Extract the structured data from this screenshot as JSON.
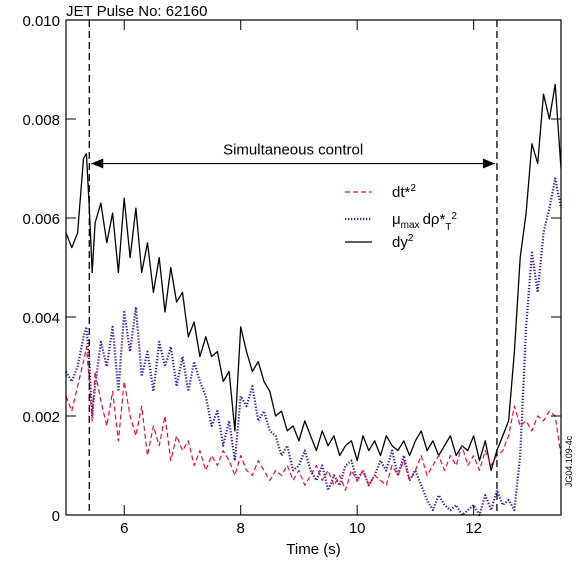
{
  "chart_data": {
    "type": "line",
    "title": "JET Pulse No: 62160",
    "xlabel": "Time (s)",
    "ylabel": "",
    "xlim": [
      5.0,
      13.5
    ],
    "ylim": [
      0,
      0.01
    ],
    "x_ticks": [
      6,
      8,
      10,
      12
    ],
    "x_tick_labels": [
      "6",
      "8",
      "10",
      "12"
    ],
    "y_ticks": [
      0,
      0.002,
      0.004,
      0.006,
      0.008,
      0.01
    ],
    "y_tick_labels": [
      "0",
      "0.002",
      "0.004",
      "0.006",
      "0.008",
      "0.010"
    ],
    "grid": false,
    "legend_position": "upper-right",
    "vlines": [
      5.4,
      12.4
    ],
    "annotation": {
      "text": "Simultaneous control",
      "x_start": 5.4,
      "x_end": 12.4,
      "y": 0.0071
    },
    "watermark": "JG04.109-4c",
    "series": [
      {
        "name": "dy2",
        "legend_main": "dy",
        "legend_sup": "2",
        "legend_sub": "",
        "legend_sup2": "",
        "color": "#000000",
        "style": "solid",
        "x": [
          5.0,
          5.1,
          5.2,
          5.3,
          5.35,
          5.4,
          5.45,
          5.5,
          5.6,
          5.7,
          5.8,
          5.9,
          6.0,
          6.1,
          6.2,
          6.3,
          6.4,
          6.5,
          6.6,
          6.7,
          6.8,
          6.9,
          7.0,
          7.1,
          7.2,
          7.3,
          7.4,
          7.5,
          7.6,
          7.7,
          7.8,
          7.9,
          8.0,
          8.1,
          8.2,
          8.3,
          8.4,
          8.5,
          8.6,
          8.7,
          8.8,
          8.9,
          9.0,
          9.1,
          9.2,
          9.3,
          9.4,
          9.5,
          9.6,
          9.7,
          9.8,
          9.9,
          10.0,
          10.1,
          10.2,
          10.3,
          10.4,
          10.5,
          10.6,
          10.7,
          10.8,
          10.9,
          11.0,
          11.1,
          11.2,
          11.3,
          11.4,
          11.5,
          11.6,
          11.7,
          11.8,
          11.9,
          12.0,
          12.1,
          12.2,
          12.3,
          12.4,
          12.5,
          12.6,
          12.7,
          12.8,
          12.9,
          13.0,
          13.1,
          13.2,
          13.3,
          13.4,
          13.5
        ],
        "values": [
          0.0057,
          0.0054,
          0.0057,
          0.0072,
          0.0073,
          0.0062,
          0.0049,
          0.0059,
          0.0063,
          0.0055,
          0.0061,
          0.0049,
          0.0064,
          0.0052,
          0.0062,
          0.0049,
          0.0055,
          0.0045,
          0.0052,
          0.0041,
          0.005,
          0.0043,
          0.0045,
          0.0036,
          0.0039,
          0.0032,
          0.0036,
          0.0032,
          0.0033,
          0.0027,
          0.0029,
          0.0017,
          0.0038,
          0.0033,
          0.0029,
          0.0031,
          0.0027,
          0.0025,
          0.002,
          0.0021,
          0.0017,
          0.0018,
          0.0015,
          0.0019,
          0.0016,
          0.0013,
          0.0017,
          0.0014,
          0.0016,
          0.0012,
          0.0014,
          0.0015,
          0.0011,
          0.0016,
          0.0013,
          0.0015,
          0.0012,
          0.0016,
          0.0014,
          0.0013,
          0.0015,
          0.0012,
          0.0015,
          0.0017,
          0.0013,
          0.0015,
          0.0012,
          0.0014,
          0.0016,
          0.0012,
          0.0014,
          0.0013,
          0.0016,
          0.0011,
          0.0015,
          0.0009,
          0.0013,
          0.0016,
          0.0019,
          0.0033,
          0.0052,
          0.0061,
          0.0075,
          0.0071,
          0.0085,
          0.008,
          0.0087,
          0.007
        ]
      },
      {
        "name": "mu_max d rho*_T^2",
        "legend_main": "μ",
        "legend_sup": "",
        "legend_sub": "max",
        "legend_sup2": "dρ*T2",
        "color": "#3a1d9e",
        "style": "dotted",
        "x": [
          5.0,
          5.1,
          5.2,
          5.3,
          5.35,
          5.4,
          5.45,
          5.5,
          5.6,
          5.7,
          5.8,
          5.9,
          6.0,
          6.1,
          6.2,
          6.3,
          6.4,
          6.5,
          6.6,
          6.7,
          6.8,
          6.9,
          7.0,
          7.1,
          7.2,
          7.3,
          7.4,
          7.5,
          7.6,
          7.7,
          7.8,
          7.9,
          8.0,
          8.1,
          8.2,
          8.3,
          8.4,
          8.5,
          8.6,
          8.7,
          8.8,
          8.9,
          9.0,
          9.1,
          9.2,
          9.3,
          9.4,
          9.5,
          9.6,
          9.7,
          9.8,
          9.9,
          10.0,
          10.1,
          10.2,
          10.3,
          10.4,
          10.5,
          10.6,
          10.7,
          10.8,
          10.9,
          11.0,
          11.1,
          11.2,
          11.3,
          11.4,
          11.5,
          11.6,
          11.7,
          11.8,
          11.9,
          12.0,
          12.1,
          12.2,
          12.3,
          12.4,
          12.5,
          12.6,
          12.7,
          12.8,
          12.9,
          13.0,
          13.1,
          13.2,
          13.3,
          13.4,
          13.5
        ],
        "values": [
          0.0029,
          0.0027,
          0.003,
          0.0036,
          0.0038,
          0.0031,
          0.002,
          0.0026,
          0.0035,
          0.003,
          0.0038,
          0.0025,
          0.0041,
          0.0033,
          0.0042,
          0.0028,
          0.0033,
          0.0025,
          0.0035,
          0.003,
          0.0034,
          0.0026,
          0.0032,
          0.0025,
          0.0031,
          0.0027,
          0.0024,
          0.0018,
          0.0021,
          0.0014,
          0.0019,
          0.0011,
          0.0024,
          0.0022,
          0.0026,
          0.0019,
          0.0021,
          0.0017,
          0.0016,
          0.0012,
          0.0014,
          0.0009,
          0.001,
          0.0013,
          0.0009,
          0.0007,
          0.001,
          0.0005,
          0.0008,
          0.0006,
          0.001,
          0.0011,
          0.0007,
          0.0009,
          0.0006,
          0.0008,
          0.0011,
          0.0009,
          0.0013,
          0.0008,
          0.0012,
          0.0007,
          0.0009,
          0.0006,
          0.0003,
          0.0001,
          0.0004,
          0.0002,
          0.0001,
          0.0002,
          0.0,
          0.0001,
          0.0002,
          0.0,
          0.0004,
          0.0001,
          0.0005,
          0.0002,
          0.0003,
          0.0001,
          0.0012,
          0.0038,
          0.0053,
          0.0045,
          0.0057,
          0.0062,
          0.0068,
          0.0062
        ]
      },
      {
        "name": "dt*2",
        "legend_main": "dt*",
        "legend_sup": "2",
        "legend_sub": "",
        "legend_sup2": "",
        "color": "#e0103a",
        "style": "dashed",
        "x": [
          5.0,
          5.1,
          5.2,
          5.3,
          5.35,
          5.4,
          5.45,
          5.5,
          5.6,
          5.7,
          5.8,
          5.9,
          6.0,
          6.1,
          6.2,
          6.3,
          6.4,
          6.5,
          6.6,
          6.7,
          6.8,
          6.9,
          7.0,
          7.1,
          7.2,
          7.3,
          7.4,
          7.5,
          7.6,
          7.7,
          7.8,
          7.9,
          8.0,
          8.1,
          8.2,
          8.3,
          8.4,
          8.5,
          8.6,
          8.7,
          8.8,
          8.9,
          9.0,
          9.1,
          9.2,
          9.3,
          9.4,
          9.5,
          9.6,
          9.7,
          9.8,
          9.9,
          10.0,
          10.1,
          10.2,
          10.3,
          10.4,
          10.5,
          10.6,
          10.7,
          10.8,
          10.9,
          11.0,
          11.1,
          11.2,
          11.3,
          11.4,
          11.5,
          11.6,
          11.7,
          11.8,
          11.9,
          12.0,
          12.1,
          12.2,
          12.3,
          12.4,
          12.5,
          12.6,
          12.7,
          12.8,
          12.9,
          13.0,
          13.1,
          13.2,
          13.3,
          13.4,
          13.5
        ],
        "values": [
          0.0024,
          0.0021,
          0.0026,
          0.0031,
          0.0034,
          0.0027,
          0.0019,
          0.0029,
          0.0023,
          0.0018,
          0.0025,
          0.0015,
          0.0027,
          0.002,
          0.0016,
          0.0022,
          0.0012,
          0.0018,
          0.0014,
          0.002,
          0.0011,
          0.0016,
          0.0013,
          0.0015,
          0.001,
          0.0013,
          0.0009,
          0.0012,
          0.001,
          0.0013,
          0.0011,
          0.0008,
          0.0012,
          0.0009,
          0.0008,
          0.0011,
          0.0009,
          0.0007,
          0.0009,
          0.0008,
          0.001,
          0.0007,
          0.0009,
          0.0006,
          0.0008,
          0.001,
          0.0007,
          0.0009,
          0.0006,
          0.0008,
          0.0005,
          0.0009,
          0.0007,
          0.0009,
          0.0006,
          0.0008,
          0.0007,
          0.0006,
          0.001,
          0.0008,
          0.0011,
          0.0007,
          0.0009,
          0.0012,
          0.0008,
          0.001,
          0.0012,
          0.0009,
          0.0012,
          0.001,
          0.0014,
          0.001,
          0.0012,
          0.0009,
          0.0013,
          0.001,
          0.0012,
          0.0013,
          0.0016,
          0.0022,
          0.0018,
          0.0019,
          0.0017,
          0.002,
          0.0019,
          0.0021,
          0.002,
          0.0012
        ]
      }
    ]
  }
}
